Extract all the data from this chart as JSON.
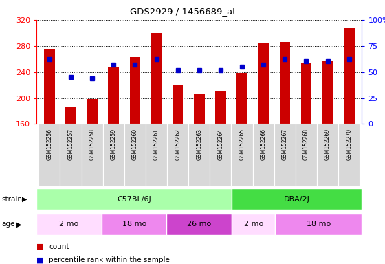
{
  "title": "GDS2929 / 1456689_at",
  "samples": [
    "GSM152256",
    "GSM152257",
    "GSM152258",
    "GSM152259",
    "GSM152260",
    "GSM152261",
    "GSM152262",
    "GSM152263",
    "GSM152264",
    "GSM152265",
    "GSM152266",
    "GSM152267",
    "GSM152268",
    "GSM152269",
    "GSM152270"
  ],
  "counts": [
    275,
    186,
    199,
    248,
    263,
    300,
    220,
    207,
    210,
    239,
    284,
    286,
    253,
    256,
    307
  ],
  "percentile_ranks": [
    62,
    45,
    44,
    57,
    57,
    62,
    52,
    52,
    52,
    55,
    57,
    62,
    60,
    60,
    62
  ],
  "ymin": 160,
  "ymax": 320,
  "yticks": [
    160,
    200,
    240,
    280,
    320
  ],
  "y2min": 0,
  "y2max": 100,
  "y2ticks": [
    0,
    25,
    50,
    75,
    100
  ],
  "bar_color": "#cc0000",
  "dot_color": "#0000cc",
  "bar_width": 0.5,
  "strain_groups": [
    {
      "label": "C57BL/6J",
      "start": 0,
      "end": 9,
      "color": "#aaffaa"
    },
    {
      "label": "DBA/2J",
      "start": 9,
      "end": 15,
      "color": "#44dd44"
    }
  ],
  "age_groups": [
    {
      "label": "2 mo",
      "start": 0,
      "end": 3,
      "color": "#ffddff"
    },
    {
      "label": "18 mo",
      "start": 3,
      "end": 6,
      "color": "#ee88ee"
    },
    {
      "label": "26 mo",
      "start": 6,
      "end": 9,
      "color": "#cc44cc"
    },
    {
      "label": "2 mo",
      "start": 9,
      "end": 11,
      "color": "#ffddff"
    },
    {
      "label": "18 mo",
      "start": 11,
      "end": 15,
      "color": "#ee88ee"
    }
  ],
  "legend_count_label": "count",
  "legend_pct_label": "percentile rank within the sample",
  "xlabel_strain": "strain",
  "xlabel_age": "age",
  "sample_label_bg": "#d8d8d8"
}
